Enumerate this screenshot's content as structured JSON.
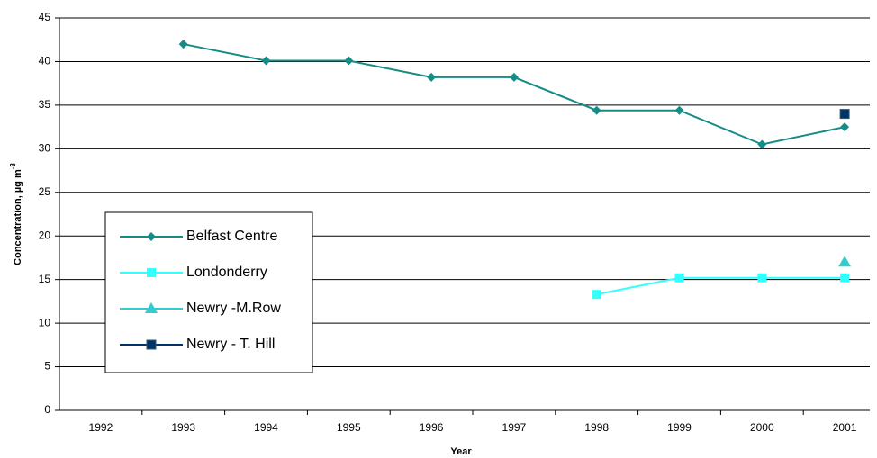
{
  "chart_data": {
    "type": "line",
    "x_label": "Year",
    "y_label": "Concentration, µg m",
    "y_label_superscript": "-3",
    "categories": [
      "1992",
      "1993",
      "1994",
      "1995",
      "1996",
      "1997",
      "1998",
      "1999",
      "2000",
      "2001"
    ],
    "series": [
      {
        "name": "Belfast Centre",
        "color": "#168c86",
        "marker": "diamond",
        "values": [
          null,
          42,
          40.1,
          40.1,
          38.2,
          38.2,
          34.4,
          34.4,
          30.5,
          32.5
        ]
      },
      {
        "name": "Londonderry",
        "color": "#33ffff",
        "marker": "square",
        "values": [
          null,
          null,
          null,
          null,
          null,
          null,
          13.3,
          15.2,
          15.2,
          15.2
        ]
      },
      {
        "name": "Newry -M.Row",
        "color": "#33cccc",
        "marker": "triangle",
        "values": [
          null,
          null,
          null,
          null,
          null,
          null,
          null,
          null,
          null,
          17
        ]
      },
      {
        "name": "Newry - T. Hill",
        "color": "#003366",
        "marker": "square",
        "values": [
          null,
          null,
          null,
          null,
          null,
          null,
          null,
          null,
          null,
          34
        ]
      }
    ],
    "ylim": [
      0,
      45
    ],
    "yticks": [
      0,
      5,
      10,
      15,
      20,
      25,
      30,
      35,
      40,
      45
    ],
    "grid": true
  }
}
